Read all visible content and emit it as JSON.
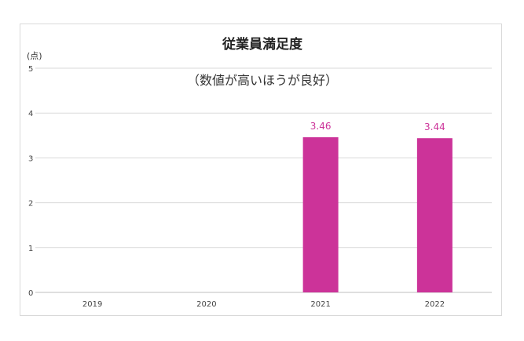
{
  "chart_data": {
    "type": "bar",
    "title": "従業員満足度",
    "subtitle": "（数値が高いほうが良好）",
    "ylabel": "(点)",
    "xlabel": "",
    "categories": [
      "2019",
      "2020",
      "2021",
      "2022"
    ],
    "values": [
      null,
      null,
      3.46,
      3.44
    ],
    "value_labels": [
      "",
      "",
      "3.46",
      "3.44"
    ],
    "ylim": [
      0,
      5
    ],
    "yticks": [
      "0",
      "1",
      "2",
      "3",
      "4",
      "5"
    ],
    "grid": true,
    "legend": "none",
    "bar_color": "#cc3399",
    "label_color": "#cc3399"
  }
}
